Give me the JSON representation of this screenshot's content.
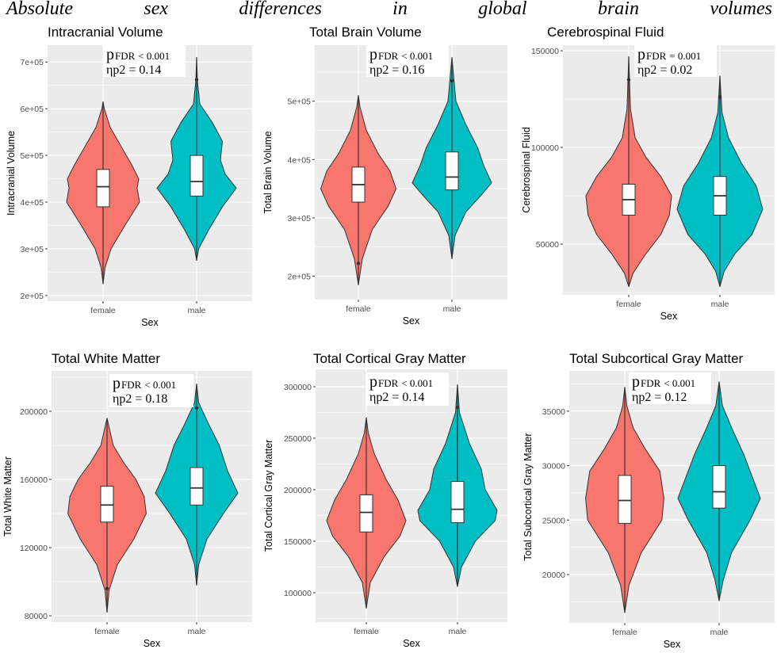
{
  "figure_title": "Absolute sex differences in global brain volumes",
  "colors": {
    "female": "#F8766D",
    "male": "#00BFC4",
    "panel_bg": "#EBEBEB",
    "grid": "#FFFFFF"
  },
  "chart_data": [
    {
      "type": "violin",
      "title": "Intracranial Volume",
      "xlabel": "Sex",
      "ylabel": "Intracranial Volume",
      "categories": [
        "female",
        "male"
      ],
      "ylim": [
        188000,
        736000
      ],
      "yticks": [
        200000,
        300000,
        400000,
        500000,
        600000,
        700000
      ],
      "ytick_labels": [
        "2e+05",
        "3e+05",
        "4e+05",
        "5e+05",
        "6e+05",
        "7e+05"
      ],
      "annotation": {
        "p": "p",
        "p_sub": "FDR",
        "p_rel": "< 0.001",
        "eta": "ηp2 = 0.14"
      },
      "groups": [
        {
          "name": "female",
          "min": 225000,
          "max": 615000,
          "q1": 390000,
          "median": 433000,
          "q3": 470000,
          "outliers": [],
          "density": [
            [
              225000,
              0
            ],
            [
              260000,
              0.05
            ],
            [
              300000,
              0.2
            ],
            [
              350000,
              0.55
            ],
            [
              400000,
              0.92
            ],
            [
              430000,
              0.86
            ],
            [
              450000,
              0.9
            ],
            [
              480000,
              0.72
            ],
            [
              520000,
              0.45
            ],
            [
              560000,
              0.18
            ],
            [
              600000,
              0.03
            ],
            [
              615000,
              0
            ]
          ]
        },
        {
          "name": "male",
          "min": 275000,
          "max": 710000,
          "q1": 413000,
          "median": 444000,
          "q3": 500000,
          "outliers": [
            662000
          ],
          "density": [
            [
              275000,
              0
            ],
            [
              300000,
              0.05
            ],
            [
              340000,
              0.3
            ],
            [
              390000,
              0.65
            ],
            [
              430000,
              1.0
            ],
            [
              460000,
              0.72
            ],
            [
              490000,
              0.6
            ],
            [
              530000,
              0.65
            ],
            [
              570000,
              0.4
            ],
            [
              610000,
              0.08
            ],
            [
              660000,
              0.02
            ],
            [
              710000,
              0
            ]
          ]
        }
      ]
    },
    {
      "type": "violin",
      "title": "Total Brain Volume",
      "xlabel": "Sex",
      "ylabel": "Total Brain Volume",
      "categories": [
        "female",
        "male"
      ],
      "ylim": [
        160000,
        596000
      ],
      "yticks": [
        200000,
        300000,
        400000,
        500000
      ],
      "ytick_labels": [
        "2e+05",
        "3e+05",
        "4e+05",
        "5e+05"
      ],
      "annotation": {
        "p": "p",
        "p_sub": "FDR",
        "p_rel": "< 0.001",
        "eta": "ηp2 = 0.16"
      },
      "groups": [
        {
          "name": "female",
          "min": 185000,
          "max": 510000,
          "q1": 327000,
          "median": 357000,
          "q3": 387000,
          "outliers": [
            222000
          ],
          "density": [
            [
              185000,
              0
            ],
            [
              230000,
              0.1
            ],
            [
              280000,
              0.35
            ],
            [
              320000,
              0.75
            ],
            [
              350000,
              0.95
            ],
            [
              380000,
              0.8
            ],
            [
              410000,
              0.5
            ],
            [
              450000,
              0.2
            ],
            [
              490000,
              0.04
            ],
            [
              510000,
              0
            ]
          ]
        },
        {
          "name": "male",
          "min": 230000,
          "max": 575000,
          "q1": 348000,
          "median": 370000,
          "q3": 413000,
          "outliers": [
            535000
          ],
          "density": [
            [
              230000,
              0
            ],
            [
              270000,
              0.08
            ],
            [
              310000,
              0.35
            ],
            [
              340000,
              0.75
            ],
            [
              360000,
              1.0
            ],
            [
              390000,
              0.8
            ],
            [
              420000,
              0.65
            ],
            [
              460000,
              0.35
            ],
            [
              500000,
              0.1
            ],
            [
              575000,
              0
            ]
          ]
        }
      ]
    },
    {
      "type": "violin",
      "title": "Cerebrospinal Fluid",
      "xlabel": "Sex",
      "ylabel": "Cerebrospinal Fluid",
      "categories": [
        "female",
        "male"
      ],
      "ylim": [
        23800,
        152900
      ],
      "yticks": [
        50000,
        100000,
        150000
      ],
      "ytick_labels": [
        "50000",
        "100000",
        "150000"
      ],
      "annotation": {
        "p": "p",
        "p_sub": "FDR",
        "p_rel": "= 0.001",
        "eta": "ηp2 = 0.02"
      },
      "groups": [
        {
          "name": "female",
          "min": 28000,
          "max": 147000,
          "q1": 65000,
          "median": 73000,
          "q3": 81000,
          "outliers": [
            135000
          ],
          "density": [
            [
              28000,
              0
            ],
            [
              35000,
              0.1
            ],
            [
              45000,
              0.4
            ],
            [
              55000,
              0.75
            ],
            [
              65000,
              0.95
            ],
            [
              75000,
              1.0
            ],
            [
              85000,
              0.75
            ],
            [
              95000,
              0.4
            ],
            [
              105000,
              0.15
            ],
            [
              120000,
              0.04
            ],
            [
              147000,
              0
            ]
          ]
        },
        {
          "name": "male",
          "min": 28000,
          "max": 137000,
          "q1": 65000,
          "median": 75000,
          "q3": 85000,
          "outliers": [
            126000
          ],
          "density": [
            [
              28000,
              0
            ],
            [
              36000,
              0.1
            ],
            [
              45000,
              0.35
            ],
            [
              55000,
              0.75
            ],
            [
              68000,
              1.0
            ],
            [
              80000,
              0.85
            ],
            [
              92000,
              0.5
            ],
            [
              105000,
              0.2
            ],
            [
              118000,
              0.05
            ],
            [
              137000,
              0
            ]
          ]
        }
      ]
    },
    {
      "type": "violin",
      "title": "Total White Matter",
      "xlabel": "Sex",
      "ylabel": "Total White Matter",
      "categories": [
        "female",
        "male"
      ],
      "ylim": [
        76300,
        223700
      ],
      "yticks": [
        80000,
        120000,
        160000,
        200000
      ],
      "ytick_labels": [
        "80000",
        "120000",
        "160000",
        "200000"
      ],
      "annotation": {
        "p": "p",
        "p_sub": "FDR",
        "p_rel": "< 0.001",
        "eta": "ηp2 = 0.18"
      },
      "groups": [
        {
          "name": "female",
          "min": 82000,
          "max": 196000,
          "q1": 135000,
          "median": 145000,
          "q3": 156000,
          "outliers": [
            96000
          ],
          "density": [
            [
              82000,
              0
            ],
            [
              95000,
              0.05
            ],
            [
              110000,
              0.25
            ],
            [
              125000,
              0.65
            ],
            [
              140000,
              0.95
            ],
            [
              150000,
              0.9
            ],
            [
              160000,
              0.7
            ],
            [
              170000,
              0.4
            ],
            [
              180000,
              0.15
            ],
            [
              196000,
              0
            ]
          ]
        },
        {
          "name": "male",
          "min": 98000,
          "max": 216000,
          "q1": 145000,
          "median": 155000,
          "q3": 167000,
          "outliers": [
            202000
          ],
          "density": [
            [
              98000,
              0
            ],
            [
              110000,
              0.05
            ],
            [
              125000,
              0.25
            ],
            [
              140000,
              0.65
            ],
            [
              152000,
              1.0
            ],
            [
              165000,
              0.75
            ],
            [
              180000,
              0.55
            ],
            [
              192000,
              0.3
            ],
            [
              205000,
              0.05
            ],
            [
              216000,
              0
            ]
          ]
        }
      ]
    },
    {
      "type": "violin",
      "title": "Total Cortical Gray Matter",
      "xlabel": "Sex",
      "ylabel": "Total Cortical Gray Matter",
      "categories": [
        "female",
        "male"
      ],
      "ylim": [
        71500,
        316900
      ],
      "yticks": [
        100000,
        150000,
        200000,
        250000,
        300000
      ],
      "ytick_labels": [
        "100000",
        "150000",
        "200000",
        "250000",
        "300000"
      ],
      "annotation": {
        "p": "p",
        "p_sub": "FDR",
        "p_rel": "< 0.001",
        "eta": "ηp2 = 0.14"
      },
      "groups": [
        {
          "name": "female",
          "min": 85000,
          "max": 270000,
          "q1": 159000,
          "median": 178000,
          "q3": 195000,
          "outliers": [],
          "density": [
            [
              85000,
              0
            ],
            [
              110000,
              0.1
            ],
            [
              135000,
              0.45
            ],
            [
              155000,
              0.85
            ],
            [
              170000,
              1.0
            ],
            [
              190000,
              0.8
            ],
            [
              210000,
              0.5
            ],
            [
              235000,
              0.2
            ],
            [
              255000,
              0.05
            ],
            [
              270000,
              0
            ]
          ]
        },
        {
          "name": "male",
          "min": 106000,
          "max": 302000,
          "q1": 168000,
          "median": 181000,
          "q3": 208000,
          "outliers": [
            280000
          ],
          "density": [
            [
              106000,
              0
            ],
            [
              125000,
              0.1
            ],
            [
              150000,
              0.45
            ],
            [
              170000,
              0.95
            ],
            [
              180000,
              1.0
            ],
            [
              200000,
              0.7
            ],
            [
              220000,
              0.6
            ],
            [
              245000,
              0.3
            ],
            [
              275000,
              0.05
            ],
            [
              302000,
              0
            ]
          ]
        }
      ]
    },
    {
      "type": "violin",
      "title": "Total Subcortical Gray Matter",
      "xlabel": "Sex",
      "ylabel": "Total Subcortical Gray Matter",
      "categories": [
        "female",
        "male"
      ],
      "ylim": [
        15560,
        38700
      ],
      "yticks": [
        20000,
        25000,
        30000,
        35000
      ],
      "ytick_labels": [
        "20000",
        "25000",
        "30000",
        "35000"
      ],
      "annotation": {
        "p": "p",
        "p_sub": "FDR",
        "p_rel": "< 0.001",
        "eta": "ηp2 = 0.12"
      },
      "groups": [
        {
          "name": "female",
          "min": 16500,
          "max": 37200,
          "q1": 24700,
          "median": 26800,
          "q3": 29100,
          "outliers": [],
          "density": [
            [
              16500,
              0
            ],
            [
              19000,
              0.1
            ],
            [
              22000,
              0.4
            ],
            [
              25000,
              0.9
            ],
            [
              27000,
              0.95
            ],
            [
              29500,
              0.85
            ],
            [
              31500,
              0.5
            ],
            [
              33500,
              0.2
            ],
            [
              35500,
              0.05
            ],
            [
              37200,
              0
            ]
          ]
        },
        {
          "name": "male",
          "min": 17600,
          "max": 37700,
          "q1": 26100,
          "median": 27600,
          "q3": 30000,
          "outliers": [],
          "density": [
            [
              17600,
              0
            ],
            [
              19500,
              0.1
            ],
            [
              22000,
              0.3
            ],
            [
              25000,
              0.75
            ],
            [
              27000,
              1.0
            ],
            [
              29000,
              0.8
            ],
            [
              31000,
              0.6
            ],
            [
              33500,
              0.3
            ],
            [
              35500,
              0.08
            ],
            [
              37700,
              0
            ]
          ]
        }
      ]
    }
  ]
}
